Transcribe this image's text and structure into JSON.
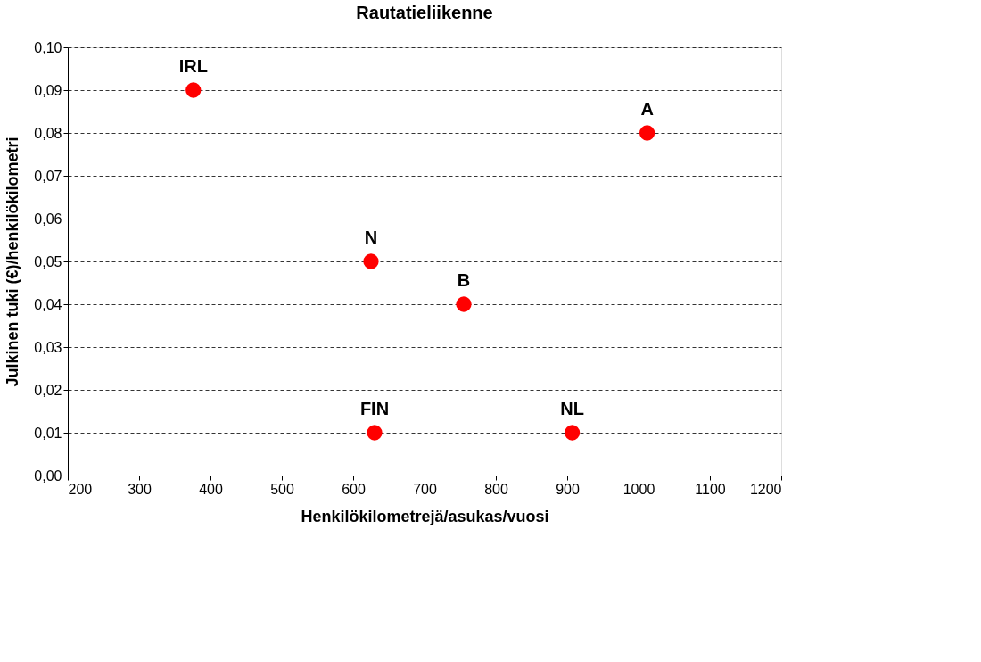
{
  "chart_data": {
    "type": "scatter",
    "title": "Rautatieliikenne",
    "xlabel": "Henkilökilometrejä/asukas/vuosi",
    "ylabel": "Julkinen tuki (€)/henkilökilometri",
    "x": [
      376,
      1012,
      625,
      755,
      630,
      907
    ],
    "values": [
      0.09,
      0.08,
      0.05,
      0.04,
      0.01,
      0.01
    ],
    "value_labels": [
      "IRL",
      "A",
      "N",
      "B",
      "FIN",
      "NL"
    ],
    "color": "#ff0000",
    "marker": "circle",
    "xlim": [
      200,
      1200
    ],
    "xticks": [
      200,
      300,
      400,
      500,
      600,
      700,
      800,
      900,
      1000,
      1100,
      1200
    ],
    "ylim": [
      0,
      0.1
    ],
    "yticks": [
      {
        "value": 0,
        "label": "0,00"
      },
      {
        "value": 0.01,
        "label": "0,01"
      },
      {
        "value": 0.02,
        "label": "0,02"
      },
      {
        "value": 0.03,
        "label": "0,03"
      },
      {
        "value": 0.04,
        "label": "0,04"
      },
      {
        "value": 0.05,
        "label": "0,05"
      },
      {
        "value": 0.06,
        "label": "0,06"
      },
      {
        "value": 0.07,
        "label": "0,07"
      },
      {
        "value": 0.08,
        "label": "0,08"
      },
      {
        "value": 0.09,
        "label": "0,09"
      },
      {
        "value": 0.1,
        "label": "0,10"
      }
    ],
    "grid": "y"
  }
}
